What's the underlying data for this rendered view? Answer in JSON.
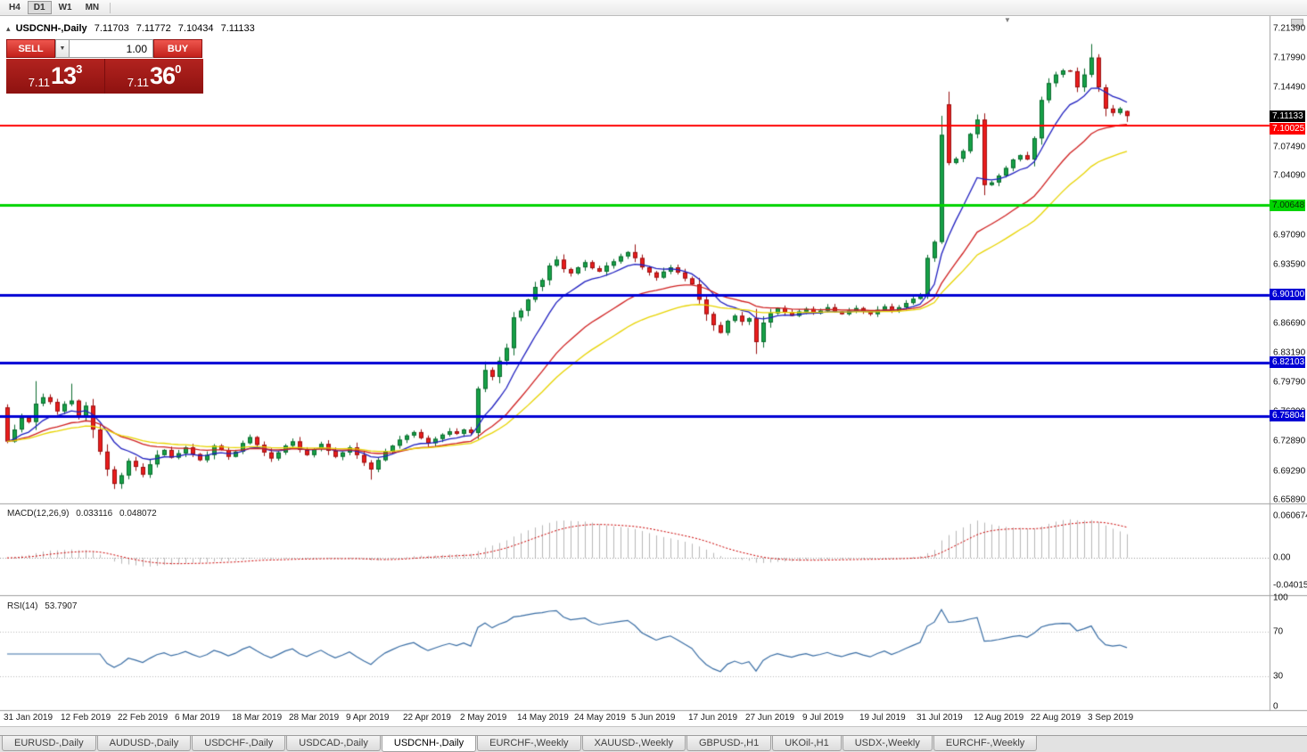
{
  "toolbar": {
    "timeframes": [
      {
        "label": "H4",
        "active": false
      },
      {
        "label": "D1",
        "active": true
      },
      {
        "label": "W1",
        "active": false
      },
      {
        "label": "MN",
        "active": false
      }
    ]
  },
  "icons": {
    "collapse": "▴",
    "dropdown": "▼",
    "shift_marker": "▼"
  },
  "quote": {
    "symbol": "USDCNH-,Daily",
    "open": "7.11703",
    "high": "7.11772",
    "low": "7.10434",
    "close": "7.11133"
  },
  "one_click": {
    "sell_label": "SELL",
    "buy_label": "BUY",
    "volume": "1.00",
    "sell_price_small": "7.11",
    "sell_price_big": "13",
    "sell_price_sup": "3",
    "buy_price_small": "7.11",
    "buy_price_big": "36",
    "buy_price_sup": "0"
  },
  "price_scale": {
    "labels": [
      {
        "text": "7.21390",
        "value": 7.2139
      },
      {
        "text": "7.17990",
        "value": 7.1799
      },
      {
        "text": "7.14490",
        "value": 7.1449
      },
      {
        "text": "7.07490",
        "value": 7.0749
      },
      {
        "text": "7.04090",
        "value": 7.0409
      },
      {
        "text": "6.97090",
        "value": 6.9709
      },
      {
        "text": "6.93590",
        "value": 6.9359
      },
      {
        "text": "6.86690",
        "value": 6.8669
      },
      {
        "text": "6.83190",
        "value": 6.8319
      },
      {
        "text": "6.79790",
        "value": 6.7979
      },
      {
        "text": "6.76290",
        "value": 6.7629
      },
      {
        "text": "6.72890",
        "value": 6.7289
      },
      {
        "text": "6.69290",
        "value": 6.6929
      },
      {
        "text": "6.65890",
        "value": 6.6589
      }
    ],
    "badges": [
      {
        "text": "7.11133",
        "value": 7.11133,
        "bg": "#000000",
        "fg": "#ffffff",
        "dy": 0
      },
      {
        "text": "7.10025",
        "value": 7.10025,
        "bg": "#ff0000",
        "fg": "#ffffff",
        "dy": 4
      },
      {
        "text": "7.00648",
        "value": 7.00648,
        "bg": "#00d400",
        "fg": "#062d06",
        "dy": 0
      },
      {
        "text": "6.90100",
        "value": 6.901,
        "bg": "#0000d4",
        "fg": "#ffffff",
        "dy": 0
      },
      {
        "text": "6.82103",
        "value": 6.82103,
        "bg": "#0000d4",
        "fg": "#ffffff",
        "dy": 0
      },
      {
        "text": "6.75804",
        "value": 6.75804,
        "bg": "#0000d4",
        "fg": "#ffffff",
        "dy": 0
      }
    ]
  },
  "macd": {
    "title": "MACD(12,26,9)",
    "value_main": "0.033116",
    "value_signal": "0.048072",
    "fast": 12,
    "slow": 26,
    "signal": 9,
    "ylim": [
      -0.054,
      0.075
    ],
    "scale": [
      {
        "text": "0.060674",
        "value": 0.060674
      },
      {
        "text": "0.00",
        "value": 0
      },
      {
        "text": "-0.040152",
        "value": -0.040152
      }
    ]
  },
  "rsi": {
    "title": "RSI(14)",
    "value": "53.7907",
    "period": 14,
    "levels": [
      30,
      70
    ],
    "scale": [
      {
        "text": "100",
        "value": 100
      },
      {
        "text": "70",
        "value": 70
      },
      {
        "text": "30",
        "value": 30
      },
      {
        "text": "0",
        "value": 0
      }
    ]
  },
  "x_axis": {
    "labels": [
      {
        "text": "31 Jan 2019",
        "index": 0
      },
      {
        "text": "12 Feb 2019",
        "index": 8
      },
      {
        "text": "22 Feb 2019",
        "index": 16
      },
      {
        "text": "6 Mar 2019",
        "index": 24
      },
      {
        "text": "18 Mar 2019",
        "index": 32
      },
      {
        "text": "28 Mar 2019",
        "index": 40
      },
      {
        "text": "9 Apr 2019",
        "index": 48
      },
      {
        "text": "22 Apr 2019",
        "index": 56
      },
      {
        "text": "2 May 2019",
        "index": 64
      },
      {
        "text": "14 May 2019",
        "index": 72
      },
      {
        "text": "24 May 2019",
        "index": 80
      },
      {
        "text": "5 Jun 2019",
        "index": 88
      },
      {
        "text": "17 Jun 2019",
        "index": 96
      },
      {
        "text": "27 Jun 2019",
        "index": 104
      },
      {
        "text": "9 Jul 2019",
        "index": 112
      },
      {
        "text": "19 Jul 2019",
        "index": 120
      },
      {
        "text": "31 Jul 2019",
        "index": 128
      },
      {
        "text": "12 Aug 2019",
        "index": 136
      },
      {
        "text": "22 Aug 2019",
        "index": 144
      },
      {
        "text": "3 Sep 2019",
        "index": 152
      }
    ]
  },
  "tabs": [
    {
      "label": "EURUSD-,Daily",
      "active": false
    },
    {
      "label": "AUDUSD-,Daily",
      "active": false
    },
    {
      "label": "USDCHF-,Daily",
      "active": false
    },
    {
      "label": "USDCAD-,Daily",
      "active": false
    },
    {
      "label": "USDCNH-,Daily",
      "active": true
    },
    {
      "label": "EURCHF-,Weekly",
      "active": false
    },
    {
      "label": "XAUUSD-,Weekly",
      "active": false
    },
    {
      "label": "GBPUSD-,H1",
      "active": false
    },
    {
      "label": "UKOil-,H1",
      "active": false
    },
    {
      "label": "USDX-,Weekly",
      "active": false
    },
    {
      "label": "EURCHF-,Weekly",
      "active": false
    }
  ],
  "colors": {
    "bull": "#16a147",
    "bull_border": "#0b6b2e",
    "bear": "#ea1c1c",
    "bear_border": "#991111",
    "ma_fast": "#2020c0",
    "ma_mid": "#d02020",
    "ma_slow": "#e8d400",
    "macd_hist": "#b8b8b8",
    "macd_signal": "#cc0000",
    "rsi": "#3a6ea5",
    "hline_red": "#ff0000",
    "hline_green": "#00d400",
    "hline_blue": "#0000d4"
  },
  "chart_data": {
    "type": "candlestick",
    "symbol": "USDCNH-",
    "timeframe": "Daily",
    "ylim": [
      6.655,
      7.229
    ],
    "closes": [
      6.728,
      6.742,
      6.756,
      6.751,
      6.7725,
      6.78,
      6.7745,
      6.7635,
      6.772,
      6.776,
      6.758,
      6.77,
      6.742,
      6.716,
      6.695,
      6.678,
      6.688,
      6.705,
      6.698,
      6.689,
      6.701,
      6.712,
      6.718,
      6.709,
      6.714,
      6.721,
      6.713,
      6.706,
      6.712,
      6.723,
      6.718,
      6.71,
      6.716,
      6.726,
      6.733,
      6.724,
      6.715,
      6.708,
      6.715,
      6.723,
      6.728,
      6.718,
      6.712,
      6.719,
      6.725,
      6.717,
      6.71,
      6.715,
      6.721,
      6.712,
      6.703,
      6.695,
      6.706,
      6.716,
      6.723,
      6.73,
      6.735,
      6.739,
      6.732,
      6.726,
      6.731,
      6.736,
      6.74,
      6.737,
      6.742,
      6.738,
      6.79,
      6.812,
      6.804,
      6.823,
      6.838,
      6.874,
      6.882,
      6.895,
      6.91,
      6.918,
      6.935,
      6.942,
      6.931,
      6.926,
      6.933,
      6.939,
      6.932,
      6.928,
      6.935,
      6.94,
      6.946,
      6.951,
      6.944,
      6.933,
      6.927,
      6.921,
      6.928,
      6.933,
      6.927,
      6.92,
      6.913,
      6.895,
      6.878,
      6.865,
      6.856,
      6.87,
      6.876,
      6.869,
      6.873,
      6.845,
      6.868,
      6.879,
      6.885,
      6.88,
      6.876,
      6.881,
      6.884,
      6.879,
      6.882,
      6.886,
      6.881,
      6.878,
      6.882,
      6.885,
      6.881,
      6.878,
      6.883,
      6.887,
      6.882,
      6.886,
      6.891,
      6.896,
      6.901,
      6.944,
      6.963,
      7.089,
      7.056,
      7.061,
      7.07,
      7.09,
      7.107,
      7.03,
      7.033,
      7.041,
      7.05,
      7.06,
      7.065,
      7.06,
      7.085,
      7.13,
      7.15,
      7.16,
      7.165,
      7.164,
      7.145,
      7.16,
      7.18,
      7.145,
      7.12,
      7.115,
      7.12,
      7.1113
    ],
    "open_overrides": {
      "0": 6.768,
      "132": 7.125,
      "157": 7.117
    },
    "wick_overrides": {
      "4": {
        "h": 6.799
      },
      "9": {
        "h": 6.796
      },
      "15": {
        "l": 6.672
      },
      "51": {
        "l": 6.683
      },
      "88": {
        "h": 6.96
      },
      "105": {
        "l": 6.831
      },
      "131": {
        "h": 7.1115
      },
      "132": {
        "h": 7.14
      },
      "136": {
        "h": 7.113
      },
      "137": {
        "l": 7.018
      },
      "152": {
        "h": 7.196
      },
      "157": {
        "h": 7.1177,
        "l": 7.1043
      }
    },
    "moving_averages": [
      {
        "name": "fast",
        "period": 9,
        "color": "#2020c0"
      },
      {
        "name": "medium",
        "period": 22,
        "color": "#d02020"
      },
      {
        "name": "slow",
        "period": 34,
        "color": "#e8d400"
      }
    ],
    "hlines": [
      {
        "price": 7.10025,
        "color": "#ff0000",
        "width": 2
      },
      {
        "price": 7.00648,
        "color": "#00d400",
        "width": 3
      },
      {
        "price": 6.901,
        "color": "#0000d4",
        "width": 3
      },
      {
        "price": 6.82103,
        "color": "#0000d4",
        "width": 3
      },
      {
        "price": 6.75804,
        "color": "#0000d4",
        "width": 3
      }
    ]
  }
}
